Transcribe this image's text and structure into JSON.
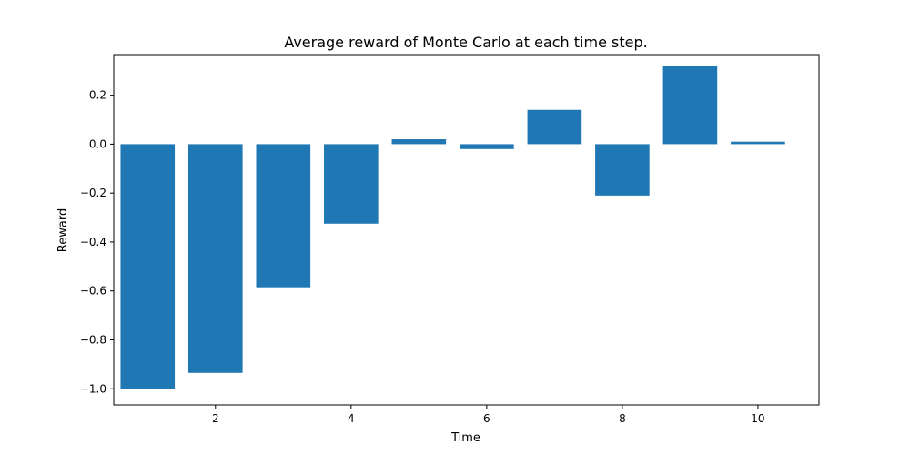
{
  "chart_data": {
    "type": "bar",
    "title": "Average reward of Monte Carlo at each time step.",
    "xlabel": "Time",
    "ylabel": "Reward",
    "x": [
      1,
      2,
      3,
      4,
      5,
      6,
      7,
      8,
      9,
      10
    ],
    "values": [
      -1.0,
      -0.935,
      -0.585,
      -0.325,
      0.02,
      -0.02,
      0.14,
      -0.21,
      0.32,
      0.01
    ],
    "bar_color": "#1f77b4",
    "xlim": [
      0.5,
      10.9
    ],
    "ylim": [
      -1.066,
      0.366
    ],
    "xticks": [
      2,
      4,
      6,
      8,
      10
    ],
    "xtick_labels": [
      "2",
      "4",
      "6",
      "8",
      "10"
    ],
    "yticks": [
      -1.0,
      -0.8,
      -0.6,
      -0.4,
      -0.2,
      0.0,
      0.2
    ],
    "ytick_labels": [
      "−1.0",
      "−0.8",
      "−0.6",
      "−0.4",
      "−0.2",
      "0.0",
      "0.2"
    ],
    "grid": false,
    "legend": "none"
  }
}
